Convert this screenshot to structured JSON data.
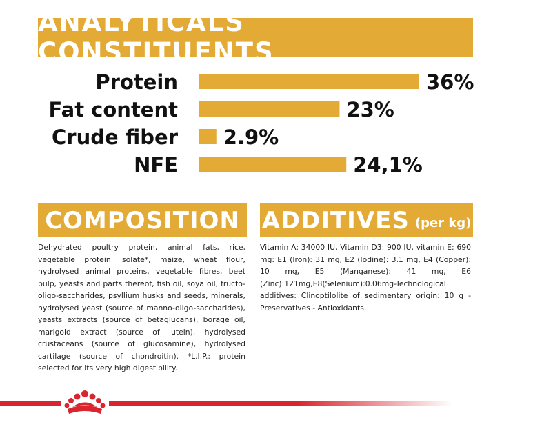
{
  "analytical": {
    "title": "ANALYTICALS CONSTITUENTS"
  },
  "chart_data": {
    "type": "bar",
    "orientation": "horizontal",
    "categories": [
      "Protein",
      "Fat content",
      "Crude fiber",
      "NFE"
    ],
    "values": [
      36,
      23,
      2.9,
      24.1
    ],
    "value_labels": [
      "36%",
      "23%",
      "2.9%",
      "24,1%"
    ],
    "bar_color": "#e3aa35",
    "title": "ANALYTICALS CONSTITUENTS"
  },
  "composition": {
    "title": "COMPOSITION",
    "text": "Dehydrated poultry protein, animal fats, rice, vegetable protein isolate*, maize, wheat flour, hydrolysed animal proteins, vegetable fibres, beet pulp, yeasts and parts thereof, fish oil, soya oil, fructo-oligo-saccharides, psyllium husks and seeds, minerals, hydrolysed yeast (source of manno-oligo-saccharides), yeasts extracts (source of betaglucans), borage oil, marigold extract (source of lutein), hydrolysed crustaceans (source of glucosamine), hydrolysed cartilage (source of chondroitin). *L.I.P.: protein selected for its very high digestibility."
  },
  "additives": {
    "title": "ADDITIVES",
    "unit": "(per kg)",
    "text": "Vitamin A: 34000 IU, Vitamin D3: 900 IU, vitamin E: 690 mg: E1 (Iron): 31 mg, E2 (Iodine): 3.1 mg, E4 (Copper): 10 mg, E5 (Manganese): 41 mg, E6 (Zinc):121mg,E8(Selenium):0.06mg-Technological additives: Clinoptilolite of sedimentary origin: 10 g - Preservatives - Antioxidants."
  },
  "logo": {
    "icon": "royal-canin-crown-icon",
    "color": "#d9252f"
  }
}
